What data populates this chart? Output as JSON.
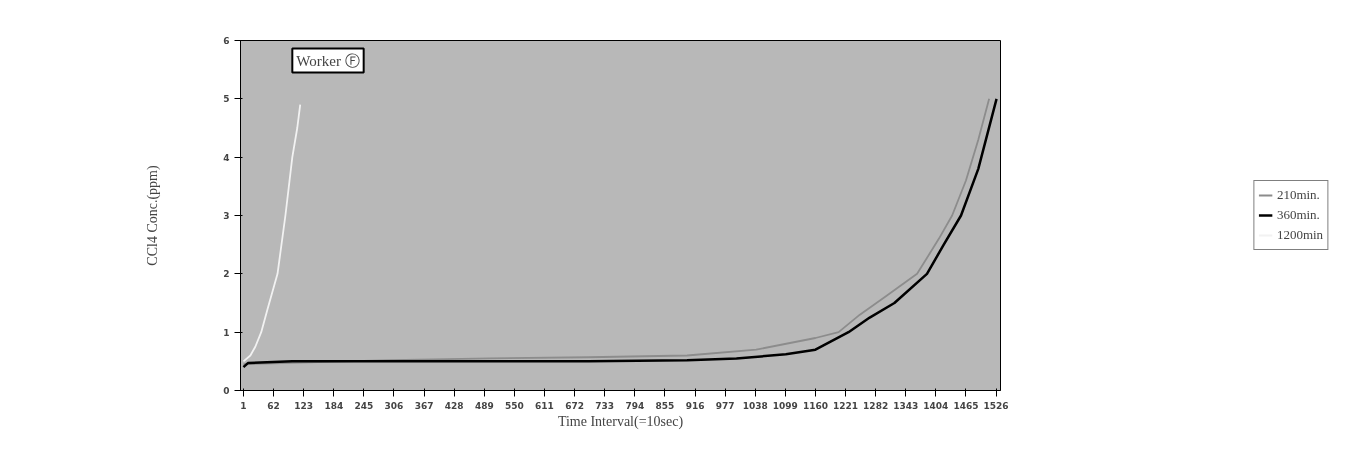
{
  "chart_data": {
    "type": "line",
    "xlabel": "Time Interval(=10sec)",
    "ylabel": "CCl4 Conc.(ppm)",
    "annotations": [
      "Worker Ⓕ"
    ],
    "xlim": [
      -5,
      1535
    ],
    "ylim": [
      0,
      6
    ],
    "xticks": [
      1,
      62,
      123,
      184,
      245,
      306,
      367,
      428,
      489,
      550,
      611,
      672,
      733,
      794,
      855,
      916,
      977,
      1038,
      1099,
      1160,
      1221,
      1282,
      1343,
      1404,
      1465,
      1526
    ],
    "yticks": [
      0,
      1,
      2,
      3,
      4,
      5,
      6
    ],
    "grid": false,
    "legend": "right",
    "marker": "none",
    "line_style": "solid",
    "series": [
      {
        "name": "210min.",
        "color": "#8c8c8c",
        "x": [
          1,
          300,
          500,
          700,
          900,
          1040,
          1160,
          1207,
          1250,
          1300,
          1366,
          1410,
          1437,
          1465,
          1490,
          1512
        ],
        "values": [
          0.45,
          0.52,
          0.55,
          0.57,
          0.6,
          0.7,
          0.9,
          1.0,
          1.3,
          1.6,
          2.0,
          2.6,
          3.0,
          3.6,
          4.3,
          5.0
        ]
      },
      {
        "name": "360min.",
        "color": "#000000",
        "x": [
          1,
          10,
          100,
          300,
          500,
          700,
          900,
          1000,
          1100,
          1160,
          1227,
          1270,
          1320,
          1386,
          1420,
          1455,
          1490,
          1527
        ],
        "values": [
          0.4,
          0.47,
          0.5,
          0.5,
          0.5,
          0.5,
          0.52,
          0.55,
          0.62,
          0.7,
          1.0,
          1.25,
          1.5,
          2.0,
          2.5,
          3.0,
          3.8,
          5.0
        ]
      },
      {
        "name": "1200min",
        "color": "#f2f2f2",
        "x": [
          1,
          15,
          25,
          37,
          50,
          70,
          86,
          100,
          110,
          116
        ],
        "values": [
          0.5,
          0.6,
          0.75,
          1.0,
          1.4,
          2.0,
          3.0,
          4.0,
          4.5,
          4.9
        ]
      }
    ]
  }
}
